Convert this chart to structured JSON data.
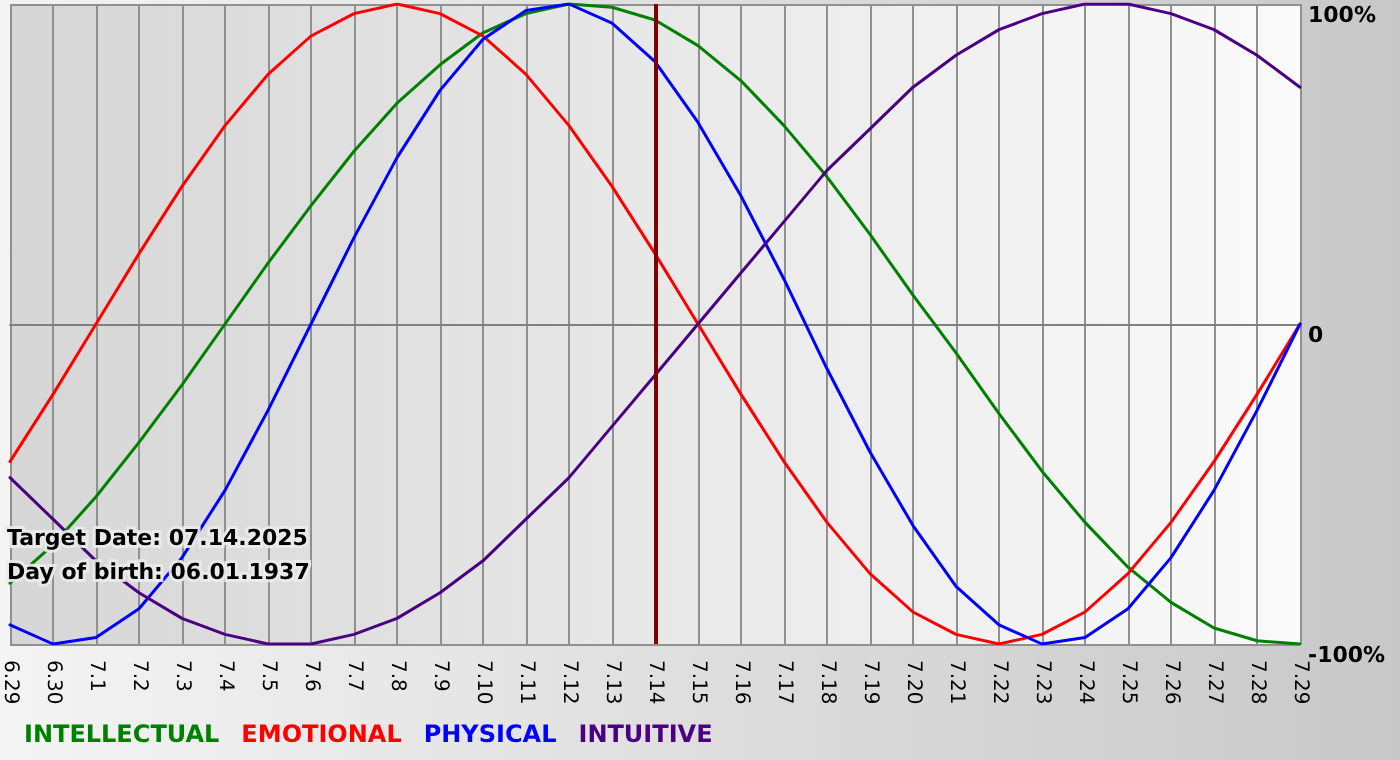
{
  "chart_data": {
    "type": "line",
    "categories": [
      "6.29",
      "6.30",
      "7.1",
      "7.2",
      "7.3",
      "7.4",
      "7.5",
      "7.6",
      "7.7",
      "7.8",
      "7.9",
      "7.10",
      "7.11",
      "7.12",
      "7.13",
      "7.14",
      "7.15",
      "7.16",
      "7.17",
      "7.18",
      "7.19",
      "7.20",
      "7.21",
      "7.22",
      "7.23",
      "7.24",
      "7.25",
      "7.26",
      "7.27",
      "7.28",
      "7.29"
    ],
    "series": [
      {
        "name": "INTELLECTUAL",
        "color": "#008000",
        "values": [
          -81,
          -69,
          -54,
          -37,
          -19,
          0,
          19,
          37,
          54,
          69,
          81,
          91,
          97,
          100,
          99,
          95,
          87,
          76,
          62,
          46,
          28,
          9,
          -9,
          -28,
          -46,
          -62,
          -76,
          -87,
          -95,
          -99,
          -100
        ]
      },
      {
        "name": "EMOTIONAL",
        "color": "#ff0000",
        "values": [
          -43,
          -22,
          0,
          22,
          43,
          62,
          78,
          90,
          97,
          100,
          97,
          90,
          78,
          62,
          43,
          22,
          0,
          -22,
          -43,
          -62,
          -78,
          -90,
          -97,
          -100,
          -97,
          -90,
          -78,
          -62,
          -43,
          -22,
          0
        ]
      },
      {
        "name": "PHYSICAL",
        "color": "#0000ff",
        "values": [
          -94,
          -100,
          -98,
          -89,
          -73,
          -52,
          -27,
          0,
          27,
          52,
          73,
          89,
          98,
          100,
          94,
          82,
          63,
          40,
          14,
          -14,
          -40,
          -63,
          -82,
          -94,
          -100,
          -98,
          -89,
          -73,
          -52,
          -27,
          0
        ]
      },
      {
        "name": "INTUITIVE",
        "color": "#4b0082",
        "values": [
          -48,
          -61,
          -74,
          -84,
          -92,
          -97,
          -100,
          -100,
          -97,
          -92,
          -84,
          -74,
          -61,
          -48,
          -32,
          -16,
          0,
          16,
          32,
          48,
          61,
          74,
          84,
          92,
          97,
          100,
          100,
          97,
          92,
          84,
          74
        ]
      }
    ],
    "ylim": [
      -100,
      100
    ],
    "yticks": [
      {
        "value": -100,
        "label": "-100%"
      },
      0,
      {
        "value": 100,
        "label": "100%"
      }
    ],
    "ref_lines": [
      {
        "axis": "x",
        "value": "7.14",
        "color": "#800000"
      }
    ],
    "annotations": [
      "Target Date: 07.14.2025",
      "Day of birth: 06.01.1937"
    ],
    "grid": true,
    "legend": "bottom left",
    "marker": "none",
    "line_style": "solid"
  }
}
